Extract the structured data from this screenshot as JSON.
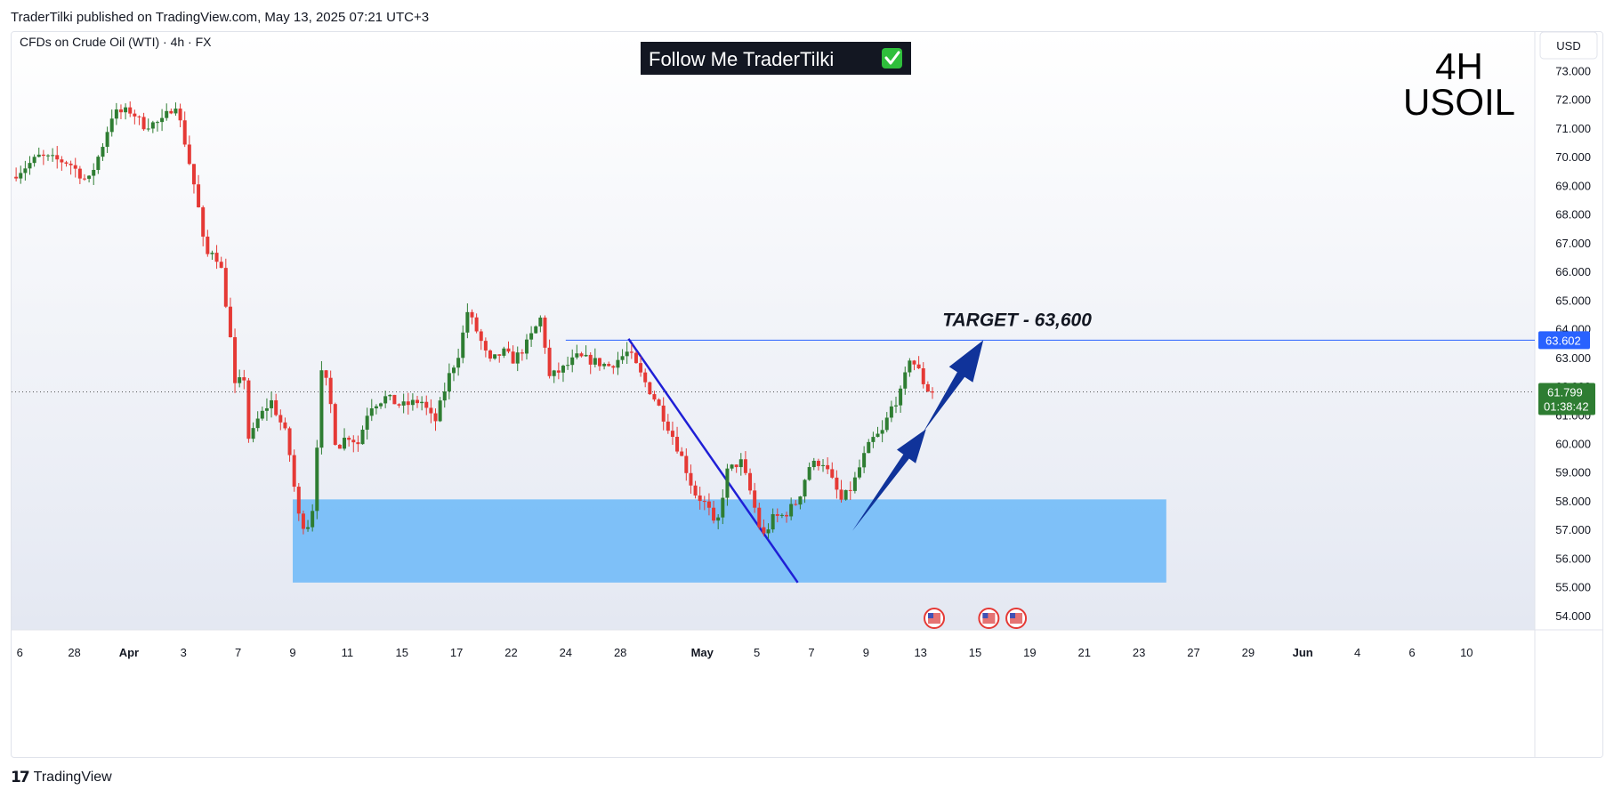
{
  "header": {
    "published_line": "TraderTilki published on TradingView.com, May 13, 2025 07:21 UTC+3"
  },
  "chart_title": "CFDs on Crude Oil (WTI) · 4h · FX",
  "banner": {
    "text": "Follow Me TraderTilki",
    "check_icon": "check-mark-icon",
    "check_color": "#2fbf3c"
  },
  "corner_label": {
    "line1": "4H",
    "line2": "USOIL"
  },
  "currency_label": "USD",
  "target_label": "TARGET - 63,600",
  "price_badges": {
    "target": {
      "value": "63.602",
      "color": "#2962ff"
    },
    "current": {
      "value": "61.799",
      "countdown": "01:38:42",
      "color": "#2e7d32"
    }
  },
  "footer": {
    "logo_text": "TradingView"
  },
  "colors": {
    "up": "#2e7d32",
    "down": "#e53935",
    "zone": "#6bb8f8",
    "arrow": "#10339a",
    "trendline": "#1f1fd6"
  },
  "chart_data": {
    "type": "candlestick",
    "title": "CFDs on Crude Oil (WTI) · 4h · FX",
    "x_ticks": [
      {
        "d": -10,
        "label": "6"
      },
      {
        "d": -8,
        "label": "28"
      },
      {
        "d": -6,
        "label": "Apr"
      },
      {
        "d": -4,
        "label": "3"
      },
      {
        "d": -2,
        "label": "7"
      },
      {
        "d": 0,
        "label": "9"
      },
      {
        "d": 2,
        "label": "11"
      },
      {
        "d": 4,
        "label": "15"
      },
      {
        "d": 6,
        "label": "17"
      },
      {
        "d": 8,
        "label": "22"
      },
      {
        "d": 10,
        "label": "24"
      },
      {
        "d": 12,
        "label": "28"
      },
      {
        "d": 15,
        "label": "May"
      },
      {
        "d": 17,
        "label": "5"
      },
      {
        "d": 19,
        "label": "7"
      },
      {
        "d": 21,
        "label": "9"
      },
      {
        "d": 23,
        "label": "13"
      },
      {
        "d": 25,
        "label": "15"
      },
      {
        "d": 27,
        "label": "19"
      },
      {
        "d": 29,
        "label": "21"
      },
      {
        "d": 31,
        "label": "23"
      },
      {
        "d": 33,
        "label": "27"
      },
      {
        "d": 35,
        "label": "29"
      },
      {
        "d": 37,
        "label": "Jun"
      },
      {
        "d": 39,
        "label": "4"
      },
      {
        "d": 41,
        "label": "6"
      },
      {
        "d": 43,
        "label": "10"
      }
    ],
    "y_ticks": [
      73,
      72,
      71,
      70,
      69,
      68,
      67,
      66,
      65,
      64,
      63,
      62,
      61,
      60,
      59,
      58,
      57,
      56,
      55,
      54
    ],
    "y_tick_labels": [
      "73.000",
      "72.000",
      "71.000",
      "70.000",
      "69.000",
      "68.000",
      "67.000",
      "66.000",
      "65.000",
      "64.000",
      "63.000",
      "62.000",
      "61.000",
      "60.000",
      "59.000",
      "58.000",
      "57.000",
      "56.000",
      "55.000",
      "54.000"
    ],
    "ylim": [
      53.5,
      74.1
    ],
    "xlim": [
      -10.3,
      45.5
    ],
    "keypoints": [
      [
        -10.3,
        69.3
      ],
      [
        -9.3,
        70.0
      ],
      [
        -8.2,
        69.8
      ],
      [
        -7.5,
        69.1
      ],
      [
        -7.0,
        70.3
      ],
      [
        -6.6,
        71.5
      ],
      [
        -5.9,
        71.6
      ],
      [
        -5.5,
        71.1
      ],
      [
        -4.8,
        71.2
      ],
      [
        -4.3,
        71.9
      ],
      [
        -3.9,
        70.3
      ],
      [
        -3.5,
        68.5
      ],
      [
        -3.2,
        66.5
      ],
      [
        -2.9,
        66.8
      ],
      [
        -2.6,
        66.0
      ],
      [
        -2.3,
        63.8
      ],
      [
        -2.1,
        61.8
      ],
      [
        -1.8,
        62.5
      ],
      [
        -1.6,
        60.0
      ],
      [
        -1.3,
        60.8
      ],
      [
        -0.8,
        61.5
      ],
      [
        -0.2,
        60.2
      ],
      [
        0.2,
        57.5
      ],
      [
        0.5,
        57.0
      ],
      [
        0.8,
        58.0
      ],
      [
        1.0,
        62.5
      ],
      [
        1.3,
        62.0
      ],
      [
        1.6,
        59.8
      ],
      [
        2.0,
        60.3
      ],
      [
        2.4,
        60.0
      ],
      [
        2.8,
        61.3
      ],
      [
        3.4,
        61.6
      ],
      [
        4.0,
        61.3
      ],
      [
        4.7,
        61.5
      ],
      [
        5.2,
        60.7
      ],
      [
        5.7,
        62.3
      ],
      [
        6.1,
        63.2
      ],
      [
        6.4,
        64.6
      ],
      [
        6.8,
        63.8
      ],
      [
        7.2,
        62.8
      ],
      [
        7.7,
        63.2
      ],
      [
        8.1,
        62.9
      ],
      [
        8.6,
        63.5
      ],
      [
        9.1,
        64.4
      ],
      [
        9.4,
        62.3
      ],
      [
        9.9,
        62.6
      ],
      [
        10.4,
        63.0
      ],
      [
        10.9,
        62.9
      ],
      [
        11.6,
        62.7
      ],
      [
        12.3,
        63.2
      ],
      [
        12.8,
        62.3
      ],
      [
        13.3,
        61.5
      ],
      [
        13.9,
        60.3
      ],
      [
        14.3,
        59.4
      ],
      [
        14.7,
        58.3
      ],
      [
        15.2,
        57.8
      ],
      [
        15.5,
        56.9
      ],
      [
        15.9,
        59.0
      ],
      [
        16.4,
        59.4
      ],
      [
        16.8,
        58.2
      ],
      [
        17.2,
        56.7
      ],
      [
        17.6,
        57.4
      ],
      [
        18.0,
        57.5
      ],
      [
        18.5,
        58.0
      ],
      [
        18.9,
        59.2
      ],
      [
        19.4,
        59.4
      ],
      [
        19.8,
        58.6
      ],
      [
        20.1,
        58.0
      ],
      [
        20.5,
        58.5
      ],
      [
        20.9,
        59.5
      ],
      [
        21.2,
        60.1
      ],
      [
        21.6,
        60.4
      ],
      [
        21.9,
        61.2
      ],
      [
        22.3,
        61.8
      ],
      [
        22.6,
        63.0
      ],
      [
        22.9,
        62.6
      ],
      [
        23.2,
        61.9
      ],
      [
        23.5,
        61.8
      ]
    ],
    "annotations": {
      "demand_zone": {
        "x": [
          0.0,
          32.0
        ],
        "y": [
          55.15,
          58.05
        ]
      },
      "target_line": {
        "y": 63.602,
        "x_start": 10.0
      },
      "current_price_line": {
        "y": 61.799
      },
      "trendline": {
        "from": [
          12.3,
          63.65
        ],
        "to": [
          18.5,
          55.15
        ]
      },
      "target_label_at": {
        "x": 23.8,
        "y": 64.1
      },
      "arrows": [
        {
          "from": [
            20.5,
            56.95
          ],
          "to": [
            23.2,
            60.5
          ],
          "size": "small"
        },
        {
          "from": [
            23.1,
            60.4
          ],
          "to": [
            25.3,
            63.6
          ],
          "size": "large"
        }
      ],
      "event_flags": [
        {
          "x": 23.5
        },
        {
          "x": 25.5
        },
        {
          "x": 26.5
        }
      ]
    }
  }
}
